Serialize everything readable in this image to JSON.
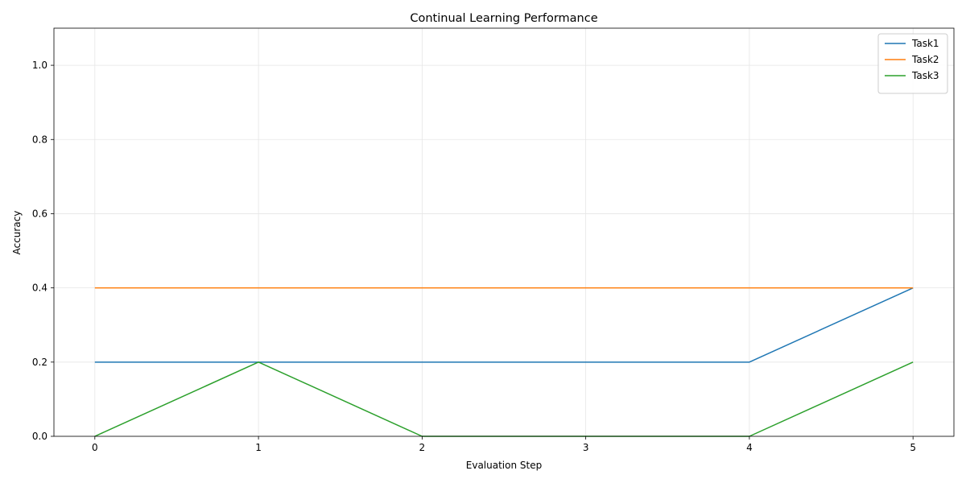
{
  "chart_data": {
    "type": "line",
    "title": "Continual Learning Performance",
    "xlabel": "Evaluation Step",
    "ylabel": "Accuracy",
    "x": [
      0,
      1,
      2,
      3,
      4,
      5
    ],
    "xlim": [
      -0.25,
      5.25
    ],
    "ylim": [
      0,
      1.1
    ],
    "xticks": [
      "0",
      "1",
      "2",
      "3",
      "4",
      "5"
    ],
    "yticks": [
      "0.0",
      "0.2",
      "0.4",
      "0.6",
      "0.8",
      "1.0"
    ],
    "grid": true,
    "legend_position": "top-right",
    "series": [
      {
        "name": "Task1",
        "color": "#1f77b4",
        "values": [
          0.2,
          0.2,
          0.2,
          0.2,
          0.2,
          0.4
        ]
      },
      {
        "name": "Task2",
        "color": "#ff7f0e",
        "values": [
          0.4,
          0.4,
          0.4,
          0.4,
          0.4,
          0.4
        ]
      },
      {
        "name": "Task3",
        "color": "#2ca02c",
        "values": [
          0.0,
          0.2,
          0.0,
          0.0,
          0.0,
          0.2
        ]
      }
    ]
  }
}
